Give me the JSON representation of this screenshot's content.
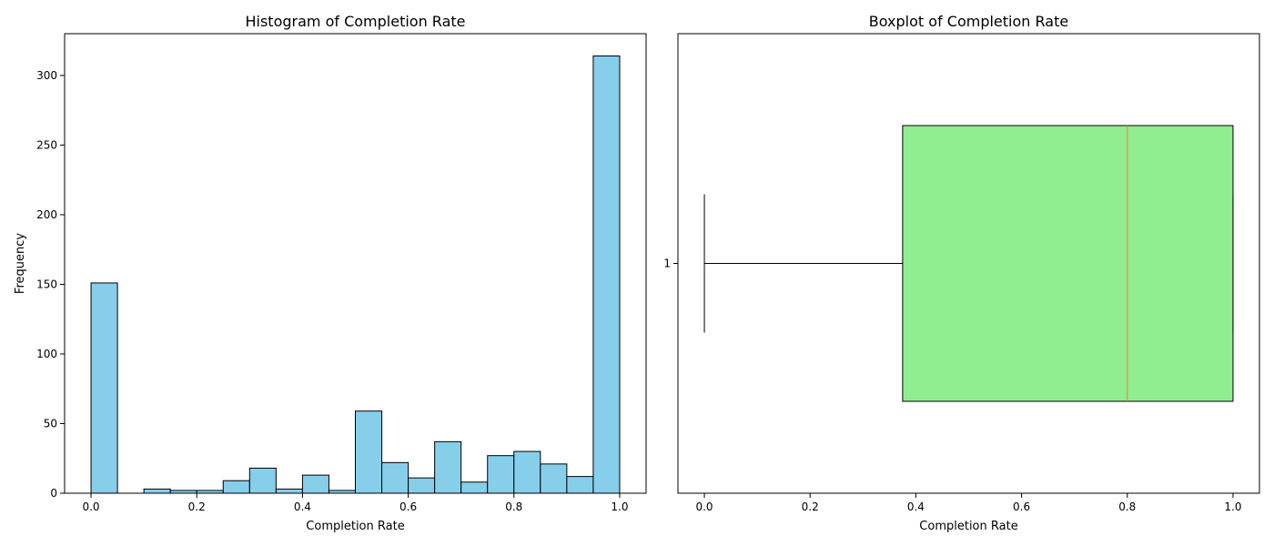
{
  "colors": {
    "hist_fill": "#87ceeb",
    "box_fill": "#90ee90",
    "median": "#ff7f0e",
    "edge": "#000000"
  },
  "chart_data": [
    {
      "type": "bar",
      "subtype": "histogram",
      "title": "Histogram of Completion Rate",
      "xlabel": "Completion Rate",
      "ylabel": "Frequency",
      "xlim": [
        -0.05,
        1.05
      ],
      "ylim": [
        0,
        330
      ],
      "xticks": [
        0.0,
        0.2,
        0.4,
        0.6,
        0.8,
        1.0
      ],
      "xtick_labels": [
        "0.0",
        "0.2",
        "0.4",
        "0.6",
        "0.8",
        "1.0"
      ],
      "yticks": [
        0,
        50,
        100,
        150,
        200,
        250,
        300
      ],
      "ytick_labels": [
        "0",
        "50",
        "100",
        "150",
        "200",
        "250",
        "300"
      ],
      "bin_edges": [
        0.0,
        0.05,
        0.1,
        0.15,
        0.2,
        0.25,
        0.3,
        0.35,
        0.4,
        0.45,
        0.5,
        0.55,
        0.6,
        0.65,
        0.7,
        0.75,
        0.8,
        0.85,
        0.9,
        0.95,
        1.0
      ],
      "values": [
        151,
        0,
        3,
        2,
        2,
        9,
        18,
        3,
        13,
        2,
        59,
        22,
        11,
        37,
        8,
        27,
        30,
        21,
        12,
        314
      ],
      "grid": false
    },
    {
      "type": "boxplot",
      "title": "Boxplot of Completion Rate",
      "xlabel": "Completion Rate",
      "xlim": [
        -0.05,
        1.05
      ],
      "xticks": [
        0.0,
        0.2,
        0.4,
        0.6,
        0.8,
        1.0
      ],
      "xtick_labels": [
        "0.0",
        "0.2",
        "0.4",
        "0.6",
        "0.8",
        "1.0"
      ],
      "ytick_labels": [
        "1"
      ],
      "orientation": "horizontal",
      "box": {
        "whisker_low": 0.0,
        "q1": 0.375,
        "median": 0.8,
        "q3": 1.0,
        "whisker_high": 1.0
      },
      "grid": false
    }
  ]
}
